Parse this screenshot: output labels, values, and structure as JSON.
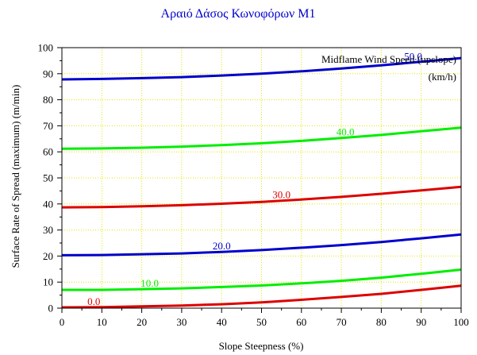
{
  "chart_data": {
    "type": "line",
    "title": "Αραιό Δάσος Κωνοφόρων M1",
    "xlabel": "Slope Steepness (%)",
    "ylabel": "Surface Rate of Spread (maximum) (m/min)",
    "xlim": [
      0,
      100
    ],
    "ylim": [
      0,
      100
    ],
    "x_ticks": [
      0,
      10,
      20,
      30,
      40,
      50,
      60,
      70,
      80,
      90,
      100
    ],
    "y_ticks": [
      0,
      10,
      20,
      30,
      40,
      50,
      60,
      70,
      80,
      90,
      100
    ],
    "grid": true,
    "legend_title_line1": "Midflame Wind Speed (upslope)",
    "legend_title_line2": "(km/h)",
    "x": [
      0,
      10,
      20,
      30,
      40,
      50,
      60,
      70,
      80,
      90,
      100
    ],
    "series": [
      {
        "name": "0.0",
        "color": "#dd0000",
        "values": [
          0.3,
          0.4,
          0.7,
          1.0,
          1.5,
          2.2,
          3.2,
          4.3,
          5.5,
          7.0,
          8.6
        ]
      },
      {
        "name": "10.0",
        "color": "#00ee00",
        "values": [
          7.0,
          7.0,
          7.3,
          7.6,
          8.1,
          8.7,
          9.5,
          10.5,
          11.7,
          13.2,
          14.8
        ]
      },
      {
        "name": "20.0",
        "color": "#0000cc",
        "values": [
          20.3,
          20.4,
          20.7,
          21.0,
          21.6,
          22.3,
          23.2,
          24.2,
          25.4,
          26.8,
          28.3
        ]
      },
      {
        "name": "30.0",
        "color": "#dd0000",
        "values": [
          38.7,
          38.8,
          39.1,
          39.5,
          40.1,
          40.8,
          41.7,
          42.7,
          43.9,
          45.2,
          46.6
        ]
      },
      {
        "name": "40.0",
        "color": "#00ee00",
        "values": [
          61.2,
          61.3,
          61.6,
          62.0,
          62.6,
          63.3,
          64.2,
          65.3,
          66.5,
          67.9,
          69.3
        ]
      },
      {
        "name": "50.0",
        "color": "#0000cc",
        "values": [
          87.8,
          88.0,
          88.3,
          88.7,
          89.3,
          90.0,
          90.9,
          92.0,
          93.2,
          94.6,
          96.0
        ]
      }
    ],
    "series_label_x": [
      8,
      22,
      40,
      55,
      71,
      88
    ]
  }
}
